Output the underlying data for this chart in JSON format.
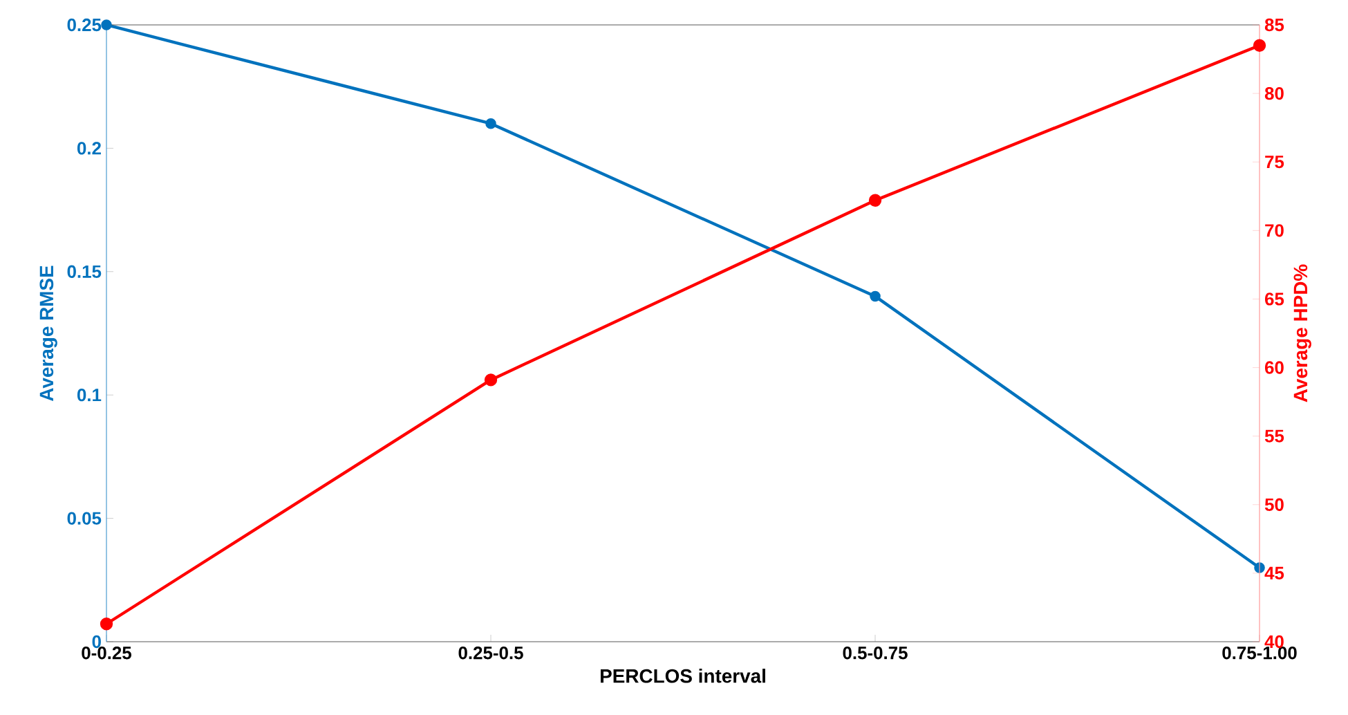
{
  "chart_data": {
    "type": "line",
    "xlabel": "PERCLOS interval",
    "ylabel": "Average RMSE",
    "y2label": "Average HPD%",
    "categories": [
      "0-0.25",
      "0.25-0.5",
      "0.5-0.75",
      "0.75-1.00"
    ],
    "series": [
      {
        "color": "#0072bd",
        "values": [
          0.25,
          0.21,
          0.14,
          0.03
        ]
      },
      {
        "color": "#ff0000",
        "values": [
          41.3,
          59.1,
          72.2,
          83.5
        ],
        "axis": "y2"
      }
    ],
    "ylim": [
      0,
      0.25
    ],
    "yticks": [
      0,
      0.05,
      0.1,
      0.15,
      0.2,
      0.25
    ],
    "y2lim": [
      40,
      85
    ],
    "y2ticks": [
      40,
      45,
      50,
      55,
      60,
      65,
      70,
      75,
      80,
      85
    ],
    "marker": "circle",
    "line_style": "solid",
    "grid": false
  }
}
